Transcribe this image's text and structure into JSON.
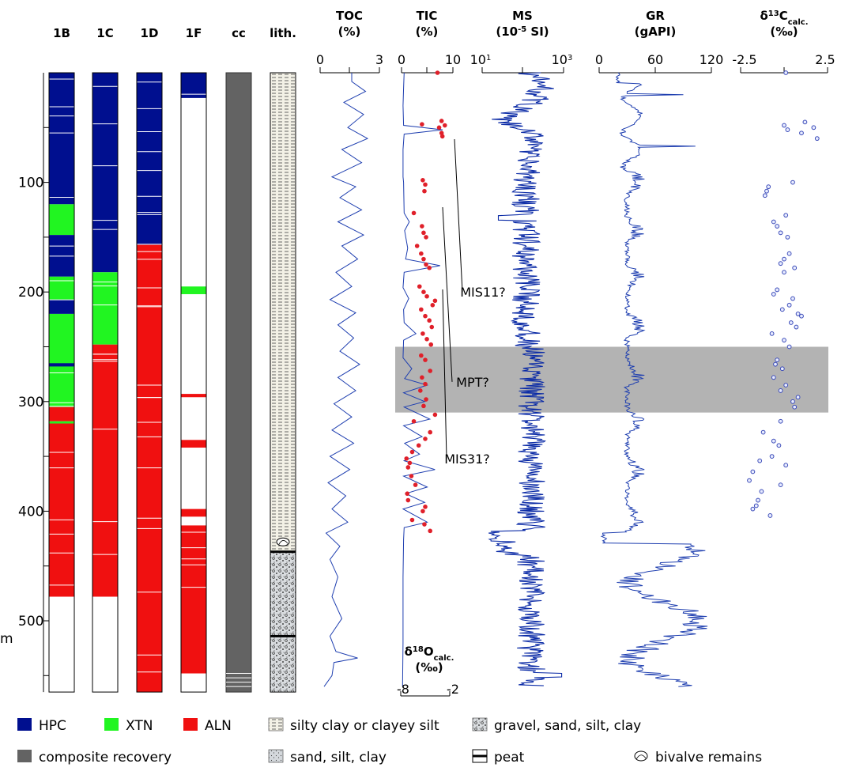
{
  "colors": {
    "hpc": "#000f8f",
    "xtn": "#21f521",
    "aln": "#f01010",
    "composite": "#636363",
    "curve": "#1f3fb0",
    "red": "#e0202a",
    "mpt_band": "#b3b3b3"
  },
  "chart_data": {
    "type": "line",
    "depth_axis": {
      "unit": "m",
      "ticks": [
        100,
        200,
        300,
        400,
        500
      ],
      "range": [
        0,
        560
      ]
    },
    "columns": [
      {
        "id": "1B",
        "label": "1B"
      },
      {
        "id": "1C",
        "label": "1C"
      },
      {
        "id": "1D",
        "label": "1D"
      },
      {
        "id": "1F",
        "label": "1F"
      },
      {
        "id": "cc",
        "label": "cc"
      },
      {
        "id": "lith",
        "label": "lith."
      }
    ],
    "core_recovery": {
      "1B": [
        {
          "from": 0,
          "to": 120,
          "type": "HPC"
        },
        {
          "from": 120,
          "to": 148,
          "type": "XTN"
        },
        {
          "from": 148,
          "to": 186,
          "type": "HPC"
        },
        {
          "from": 186,
          "to": 207,
          "type": "XTN"
        },
        {
          "from": 207,
          "to": 220,
          "type": "HPC"
        },
        {
          "from": 220,
          "to": 268,
          "type": "XTN"
        },
        {
          "from": 265,
          "to": 268,
          "type": "HPC"
        },
        {
          "from": 268,
          "to": 305,
          "type": "XTN"
        },
        {
          "from": 305,
          "to": 318,
          "type": "ALN"
        },
        {
          "from": 318,
          "to": 320,
          "type": "XTN"
        },
        {
          "from": 320,
          "to": 478,
          "type": "ALN"
        }
      ],
      "1C": [
        {
          "from": 0,
          "to": 182,
          "type": "HPC"
        },
        {
          "from": 182,
          "to": 248,
          "type": "XTN"
        },
        {
          "from": 248,
          "to": 478,
          "type": "ALN"
        }
      ],
      "1D": [
        {
          "from": 0,
          "to": 157,
          "type": "HPC"
        },
        {
          "from": 157,
          "to": 565,
          "type": "ALN"
        }
      ],
      "1F": [
        {
          "from": 0,
          "to": 23,
          "type": "HPC"
        },
        {
          "from": 195,
          "to": 202,
          "type": "XTN"
        },
        {
          "from": 293,
          "to": 296,
          "type": "ALN"
        },
        {
          "from": 335,
          "to": 342,
          "type": "ALN"
        },
        {
          "from": 398,
          "to": 405,
          "type": "ALN"
        },
        {
          "from": 413,
          "to": 548,
          "type": "ALN"
        }
      ],
      "composite_recovery": {
        "from": 0,
        "to": 565
      }
    },
    "lithology": [
      {
        "from": 0,
        "to": 437,
        "type": "silty clay or clayey silt"
      },
      {
        "from": 437,
        "to": 565,
        "type": "gravel, sand, silt, clay"
      }
    ],
    "lithology_marks": [
      {
        "depth": 437,
        "type": "peat"
      },
      {
        "depth": 514,
        "type": "peat"
      },
      {
        "depth": 428,
        "type": "bivalve remains"
      }
    ],
    "panels": {
      "toc": {
        "title": [
          "TOC",
          "(%)"
        ],
        "ticks": [
          "0",
          "3"
        ],
        "range": [
          0,
          3
        ],
        "values": [
          [
            0,
            1.6
          ],
          [
            8,
            1.6
          ],
          [
            17,
            2.3
          ],
          [
            27,
            1.2
          ],
          [
            38,
            2.2
          ],
          [
            50,
            1.4
          ],
          [
            60,
            2.4
          ],
          [
            70,
            1.1
          ],
          [
            82,
            2.1
          ],
          [
            95,
            0.6
          ],
          [
            104,
            1.8
          ],
          [
            114,
            1.0
          ],
          [
            125,
            2.1
          ],
          [
            136,
            0.9
          ],
          [
            148,
            2.2
          ],
          [
            158,
            1.1
          ],
          [
            170,
            1.9
          ],
          [
            182,
            0.8
          ],
          [
            195,
            1.6
          ],
          [
            207,
            0.5
          ],
          [
            219,
            1.8
          ],
          [
            230,
            0.9
          ],
          [
            242,
            1.7
          ],
          [
            254,
            1.0
          ],
          [
            266,
            2.0
          ],
          [
            278,
            0.9
          ],
          [
            290,
            1.8
          ],
          [
            302,
            0.7
          ],
          [
            314,
            1.6
          ],
          [
            326,
            0.6
          ],
          [
            338,
            1.7
          ],
          [
            350,
            0.5
          ],
          [
            362,
            1.5
          ],
          [
            374,
            0.4
          ],
          [
            386,
            1.3
          ],
          [
            398,
            0.6
          ],
          [
            410,
            1.4
          ],
          [
            420,
            0.3
          ],
          [
            432,
            1.0
          ],
          [
            444,
            0.5
          ],
          [
            460,
            0.9
          ],
          [
            478,
            0.6
          ],
          [
            498,
            1.1
          ],
          [
            514,
            0.5
          ],
          [
            528,
            0.8
          ],
          [
            534,
            1.9
          ],
          [
            538,
            0.7
          ],
          [
            550,
            0.6
          ],
          [
            560,
            0.2
          ]
        ]
      },
      "tic": {
        "title": [
          "TIC",
          "(%)"
        ],
        "ticks": [
          "0",
          "10"
        ],
        "range": [
          0,
          10
        ],
        "values": [
          [
            0,
            0.5
          ],
          [
            14,
            0.4
          ],
          [
            30,
            0.3
          ],
          [
            48,
            0.4
          ],
          [
            52,
            8.0
          ],
          [
            56,
            0.5
          ],
          [
            70,
            0.3
          ],
          [
            95,
            0.3
          ],
          [
            100,
            0.4
          ],
          [
            128,
            0.5
          ],
          [
            136,
            1.5
          ],
          [
            144,
            0.6
          ],
          [
            160,
            1.2
          ],
          [
            170,
            0.8
          ],
          [
            176,
            7.5
          ],
          [
            182,
            0.5
          ],
          [
            196,
            0.3
          ],
          [
            206,
            1.4
          ],
          [
            216,
            0.4
          ],
          [
            228,
            0.5
          ],
          [
            238,
            2.8
          ],
          [
            244,
            0.4
          ],
          [
            260,
            0.3
          ],
          [
            270,
            2.0
          ],
          [
            279,
            0.6
          ],
          [
            285,
            5.0
          ],
          [
            292,
            0.4
          ],
          [
            300,
            4.5
          ],
          [
            305,
            0.5
          ],
          [
            316,
            5.5
          ],
          [
            322,
            0.4
          ],
          [
            332,
            4.0
          ],
          [
            338,
            0.6
          ],
          [
            348,
            3.5
          ],
          [
            354,
            0.5
          ],
          [
            362,
            6.5
          ],
          [
            368,
            0.4
          ],
          [
            378,
            5.0
          ],
          [
            384,
            0.8
          ],
          [
            392,
            4.5
          ],
          [
            398,
            0.3
          ],
          [
            410,
            5.0
          ],
          [
            415,
            0.5
          ],
          [
            426,
            0.4
          ],
          [
            460,
            0.3
          ],
          [
            520,
            0.3
          ],
          [
            560,
            0.2
          ]
        ]
      },
      "d18o": {
        "label": [
          "δ18Ocalc.",
          "(‰)"
        ],
        "ticks": [
          "-8",
          "-2"
        ],
        "range": [
          -8,
          -2
        ],
        "points": [
          [
            0,
            -3.5
          ],
          [
            44,
            -3.0
          ],
          [
            48,
            -2.6
          ],
          [
            50,
            -3.3
          ],
          [
            55,
            -3.0
          ],
          [
            58,
            -2.9
          ],
          [
            47,
            -5.4
          ],
          [
            98,
            -5.3
          ],
          [
            102,
            -5.0
          ],
          [
            108,
            -5.1
          ],
          [
            128,
            -6.4
          ],
          [
            140,
            -5.4
          ],
          [
            146,
            -5.2
          ],
          [
            150,
            -4.9
          ],
          [
            158,
            -6.0
          ],
          [
            165,
            -5.5
          ],
          [
            170,
            -5.2
          ],
          [
            175,
            -4.9
          ],
          [
            178,
            -4.5
          ],
          [
            195,
            -5.7
          ],
          [
            200,
            -5.2
          ],
          [
            204,
            -4.8
          ],
          [
            208,
            -3.8
          ],
          [
            212,
            -4.1
          ],
          [
            216,
            -5.5
          ],
          [
            222,
            -5.0
          ],
          [
            226,
            -4.5
          ],
          [
            232,
            -4.2
          ],
          [
            238,
            -5.3
          ],
          [
            243,
            -4.8
          ],
          [
            248,
            -4.3
          ],
          [
            258,
            -5.5
          ],
          [
            262,
            -5.0
          ],
          [
            272,
            -4.4
          ],
          [
            278,
            -5.4
          ],
          [
            284,
            -5.0
          ],
          [
            290,
            -5.6
          ],
          [
            298,
            -4.9
          ],
          [
            304,
            -5.2
          ],
          [
            312,
            -3.8
          ],
          [
            318,
            -6.4
          ],
          [
            328,
            -4.4
          ],
          [
            334,
            -5.0
          ],
          [
            340,
            -5.8
          ],
          [
            346,
            -6.6
          ],
          [
            352,
            -7.3
          ],
          [
            356,
            -6.9
          ],
          [
            360,
            -7.1
          ],
          [
            368,
            -6.7
          ],
          [
            376,
            -6.2
          ],
          [
            384,
            -7.2
          ],
          [
            390,
            -7.1
          ],
          [
            396,
            -5.0
          ],
          [
            400,
            -5.3
          ],
          [
            408,
            -6.6
          ],
          [
            412,
            -5.1
          ],
          [
            418,
            -4.4
          ]
        ]
      },
      "ms": {
        "title": [
          "MS",
          "(10-5 SI)"
        ],
        "ticks": [
          "101",
          "103"
        ],
        "scale": "log",
        "range": [
          10,
          1000
        ]
      },
      "gr": {
        "title": [
          "GR",
          "(gAPI)"
        ],
        "ticks": [
          "0",
          "60",
          "120"
        ],
        "range": [
          0,
          120
        ]
      },
      "d13c": {
        "title": [
          "δ13Ccalc.",
          "(‰)"
        ],
        "ticks": [
          "-2.5",
          "2.5"
        ],
        "range": [
          -2.5,
          2.5
        ],
        "points": [
          [
            0,
            0.1
          ],
          [
            48,
            0.0
          ],
          [
            52,
            0.2
          ],
          [
            45,
            1.2
          ],
          [
            55,
            1.0
          ],
          [
            50,
            1.7
          ],
          [
            60,
            1.9
          ],
          [
            100,
            0.5
          ],
          [
            104,
            -0.9
          ],
          [
            108,
            -1.0
          ],
          [
            112,
            -1.1
          ],
          [
            130,
            0.1
          ],
          [
            136,
            -0.6
          ],
          [
            140,
            -0.4
          ],
          [
            146,
            -0.2
          ],
          [
            150,
            0.2
          ],
          [
            165,
            0.3
          ],
          [
            170,
            0.0
          ],
          [
            174,
            -0.2
          ],
          [
            178,
            0.6
          ],
          [
            182,
            0.0
          ],
          [
            198,
            -0.4
          ],
          [
            202,
            -0.6
          ],
          [
            206,
            0.5
          ],
          [
            212,
            0.3
          ],
          [
            216,
            -0.1
          ],
          [
            220,
            0.8
          ],
          [
            222,
            1.0
          ],
          [
            228,
            0.4
          ],
          [
            232,
            0.7
          ],
          [
            238,
            -0.7
          ],
          [
            244,
            0.0
          ],
          [
            250,
            0.3
          ],
          [
            262,
            -0.4
          ],
          [
            266,
            -0.5
          ],
          [
            270,
            -0.1
          ],
          [
            278,
            -0.6
          ],
          [
            285,
            0.1
          ],
          [
            290,
            -0.2
          ],
          [
            296,
            0.8
          ],
          [
            300,
            0.5
          ],
          [
            305,
            0.6
          ],
          [
            318,
            -0.2
          ],
          [
            328,
            -1.2
          ],
          [
            336,
            -0.6
          ],
          [
            340,
            -0.3
          ],
          [
            350,
            -0.7
          ],
          [
            354,
            -1.4
          ],
          [
            358,
            0.1
          ],
          [
            364,
            -1.8
          ],
          [
            372,
            -2.0
          ],
          [
            376,
            -0.2
          ],
          [
            382,
            -1.3
          ],
          [
            390,
            -1.5
          ],
          [
            395,
            -1.6
          ],
          [
            398,
            -1.8
          ],
          [
            404,
            -0.8
          ]
        ]
      }
    },
    "annotations": [
      {
        "text": "MIS11?",
        "depth": 200
      },
      {
        "text": "MPT?",
        "depth": 282
      },
      {
        "text": "MIS31?",
        "depth": 352
      }
    ],
    "bands": [
      {
        "label": "MPT?",
        "from": 250,
        "to": 310
      }
    ],
    "legend": [
      {
        "key": "HPC",
        "label": "HPC",
        "swatch": "hpc"
      },
      {
        "key": "XTN",
        "label": "XTN",
        "swatch": "xtn"
      },
      {
        "key": "ALN",
        "label": "ALN",
        "swatch": "aln"
      },
      {
        "key": "silty",
        "label": "silty clay or clayey silt",
        "swatch": "silty"
      },
      {
        "key": "gravel",
        "label": "gravel, sand, silt, clay",
        "swatch": "gravel"
      },
      {
        "key": "composite",
        "label": "composite recovery",
        "swatch": "composite"
      },
      {
        "key": "sand",
        "label": "sand, silt, clay",
        "swatch": "sand"
      },
      {
        "key": "peat",
        "label": "peat",
        "swatch": "peat"
      },
      {
        "key": "bivalve",
        "label": "bivalve remains",
        "swatch": "bivalve"
      }
    ]
  }
}
